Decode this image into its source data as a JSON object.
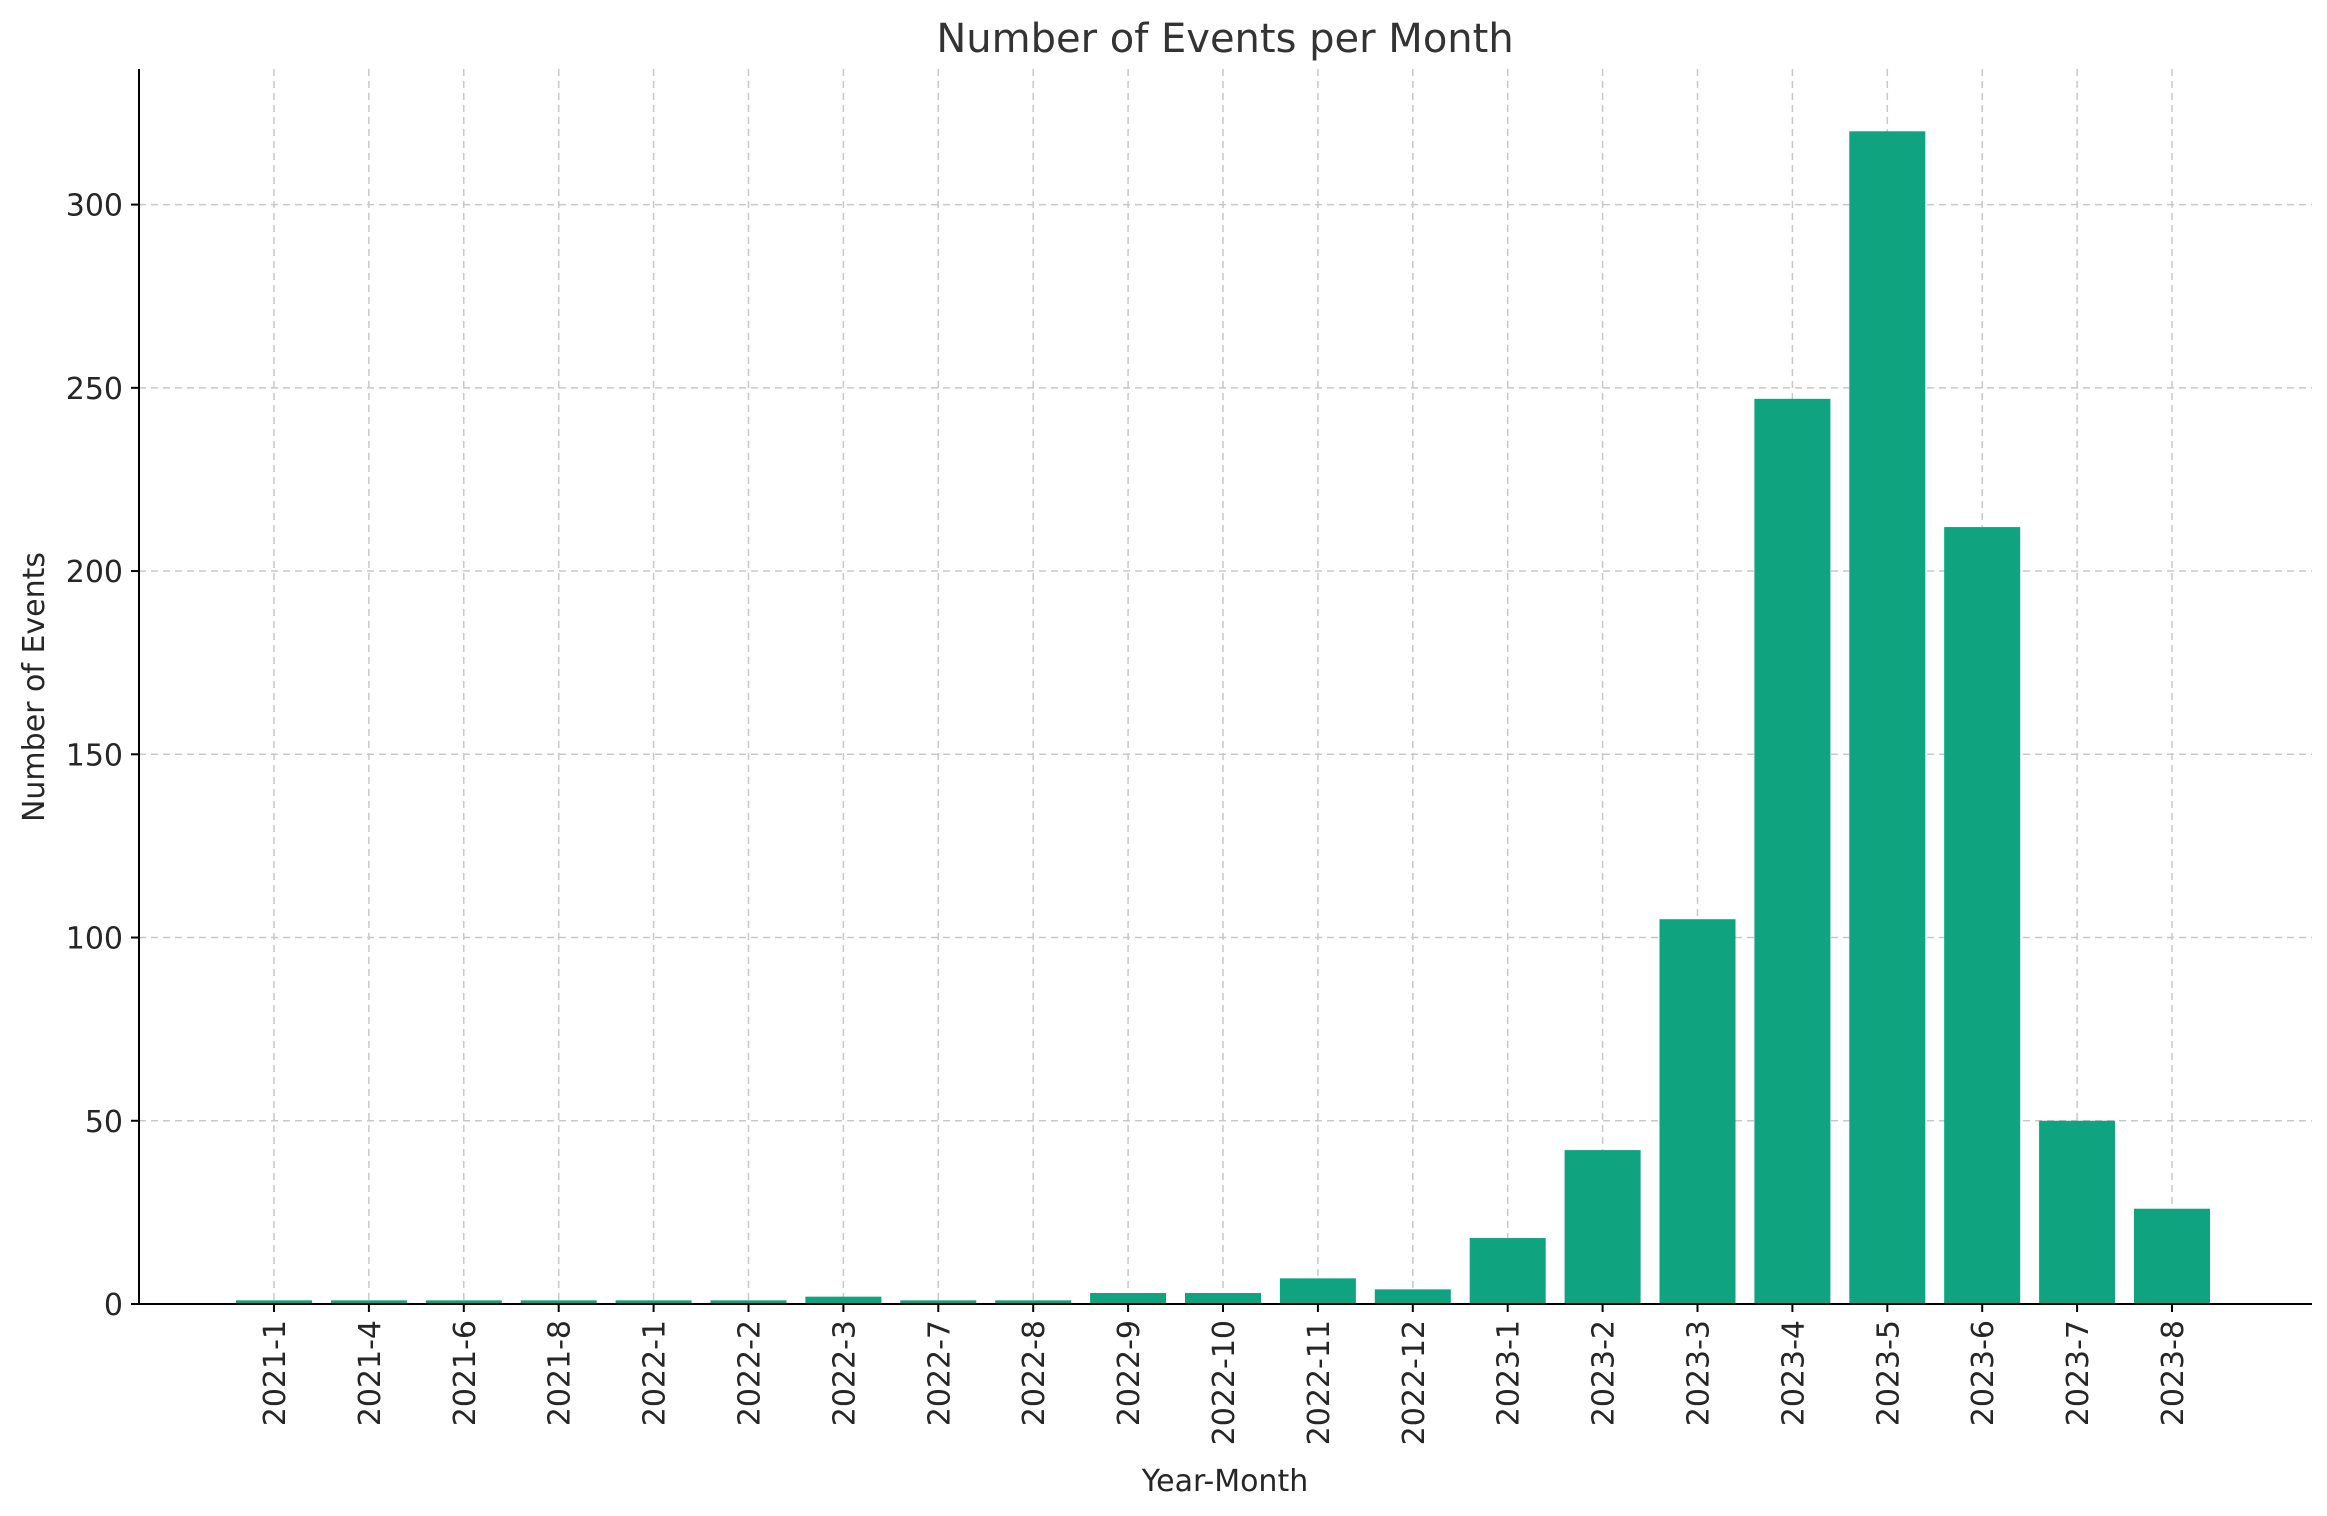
{
  "chart_data": {
    "type": "bar",
    "title": "Number of Events per Month",
    "xlabel": "Year-Month",
    "ylabel": "Number of Events",
    "categories": [
      "2021-1",
      "2021-4",
      "2021-6",
      "2021-8",
      "2022-1",
      "2022-2",
      "2022-3",
      "2022-7",
      "2022-8",
      "2022-9",
      "2022-10",
      "2022-11",
      "2022-12",
      "2023-1",
      "2023-2",
      "2023-3",
      "2023-4",
      "2023-5",
      "2023-6",
      "2023-7",
      "2023-8"
    ],
    "values": [
      1,
      1,
      1,
      1,
      1,
      1,
      2,
      1,
      1,
      3,
      3,
      7,
      4,
      18,
      42,
      105,
      247,
      320,
      212,
      50,
      26
    ],
    "ylim": [
      0,
      337
    ],
    "yticks": [
      0,
      50,
      100,
      150,
      200,
      250,
      300
    ],
    "grid": true,
    "bar_color": "#10a37f"
  }
}
